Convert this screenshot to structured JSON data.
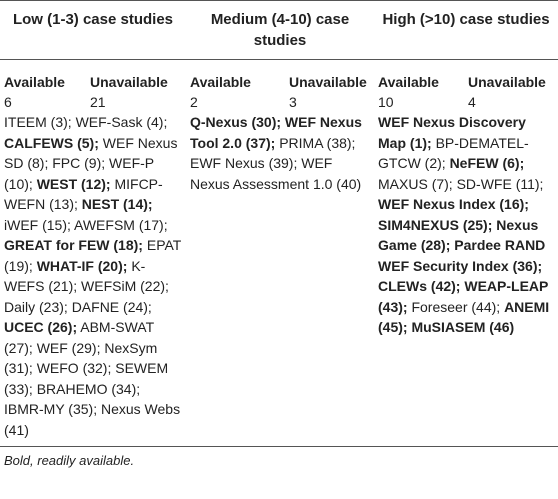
{
  "table": {
    "groups": [
      {
        "title": "Low (1-3) case studies",
        "available_label": "Available",
        "unavailable_label": "Unavailable",
        "available": "6",
        "unavailable": "21",
        "items": [
          {
            "text": "ITEEM (3);",
            "bold": false
          },
          {
            "text": "WEF-Sask (4);",
            "bold": false
          },
          {
            "text": "CALFEWS (5);",
            "bold": true
          },
          {
            "text": "WEF Nexus SD (8);",
            "bold": false
          },
          {
            "text": "FPC (9);",
            "bold": false
          },
          {
            "text": "WEF-P (10);",
            "bold": false
          },
          {
            "text": "WEST (12);",
            "bold": true
          },
          {
            "text": "MIFCP-WEFN (13);",
            "bold": false
          },
          {
            "text": "NEST (14);",
            "bold": true
          },
          {
            "text": "iWEF (15);",
            "bold": false
          },
          {
            "text": "AWEFSM (17);",
            "bold": false
          },
          {
            "text": "GREAT for FEW (18);",
            "bold": true
          },
          {
            "text": "EPAT (19);",
            "bold": false
          },
          {
            "text": "WHAT-IF (20);",
            "bold": true
          },
          {
            "text": "K-WEFS (21);",
            "bold": false
          },
          {
            "text": "WEFSiM (22);",
            "bold": false
          },
          {
            "text": "Daily (23);",
            "bold": false
          },
          {
            "text": "DAFNE (24);",
            "bold": false
          },
          {
            "text": "UCEC (26);",
            "bold": true
          },
          {
            "text": "ABM-SWAT (27);",
            "bold": false
          },
          {
            "text": "WEF (29);",
            "bold": false
          },
          {
            "text": "NexSym (31);",
            "bold": false
          },
          {
            "text": "WEFO (32);",
            "bold": false
          },
          {
            "text": "SEWEM (33);",
            "bold": false
          },
          {
            "text": "BRAHEMO (34);",
            "bold": false
          },
          {
            "text": "IBMR-MY (35);",
            "bold": false
          },
          {
            "text": "Nexus Webs (41)",
            "bold": false
          }
        ]
      },
      {
        "title": "Medium (4-10) case studies",
        "available_label": "Available",
        "unavailable_label": "Unavailable",
        "available": "2",
        "unavailable": "3",
        "items": [
          {
            "text": "Q-Nexus (30);",
            "bold": true
          },
          {
            "text": "WEF Nexus Tool 2.0 (37);",
            "bold": true
          },
          {
            "text": "PRIMA (38);",
            "bold": false
          },
          {
            "text": "EWF Nexus (39);",
            "bold": false
          },
          {
            "text": "WEF Nexus Assessment 1.0 (40)",
            "bold": false
          }
        ]
      },
      {
        "title": "High (>10) case studies",
        "available_label": "Available",
        "unavailable_label": "Unavailable",
        "available": "10",
        "unavailable": "4",
        "items": [
          {
            "text": "WEF Nexus Discovery Map (1);",
            "bold": true
          },
          {
            "text": "BP-DEMATEL-GTCW (2);",
            "bold": false
          },
          {
            "text": "NeFEW (6);",
            "bold": true
          },
          {
            "text": "MAXUS (7);",
            "bold": false
          },
          {
            "text": "SD-WFE (11);",
            "bold": false
          },
          {
            "text": "WEF Nexus Index (16);",
            "bold": true
          },
          {
            "text": "SIM4NEXUS (25);",
            "bold": true
          },
          {
            "text": "Nexus Game (28);",
            "bold": true
          },
          {
            "text": "Pardee RAND WEF Security Index (36);",
            "bold": true
          },
          {
            "text": "CLEWs (42);",
            "bold": true
          },
          {
            "text": "WEAP-LEAP (43);",
            "bold": true
          },
          {
            "text": "Foreseer (44);",
            "bold": false
          },
          {
            "text": "ANEMI (45);",
            "bold": true
          },
          {
            "text": "MuSIASEM (46)",
            "bold": true
          }
        ]
      }
    ],
    "footnote": "Bold, readily available."
  }
}
